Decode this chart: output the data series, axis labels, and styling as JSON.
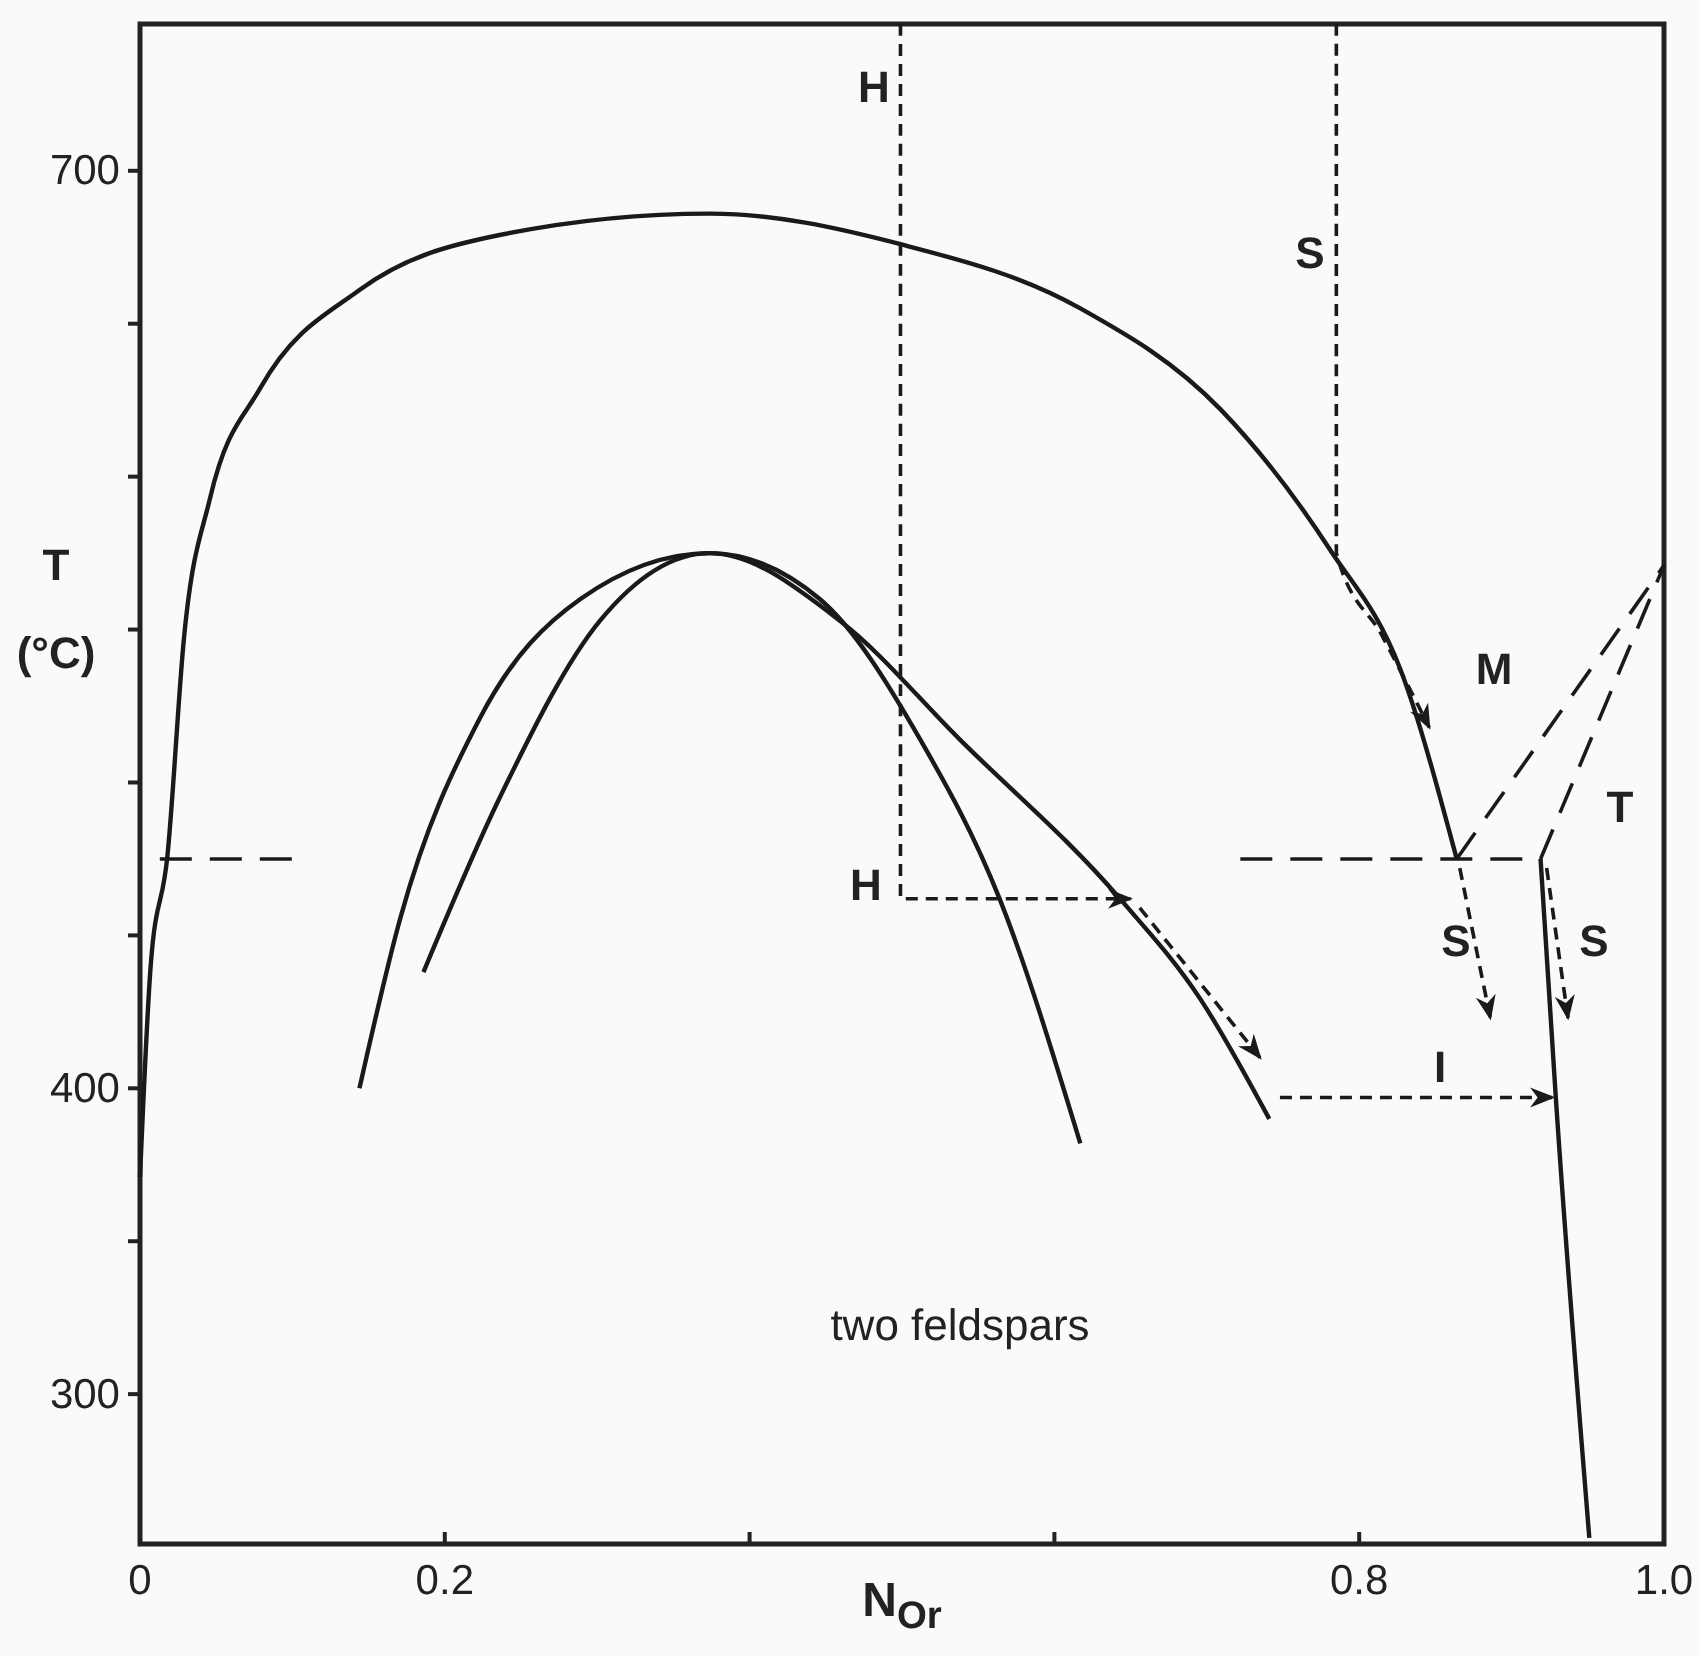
{
  "chart_data": {
    "type": "line",
    "xlabel": "N$_{Or}$",
    "ylabel": "T (°C)",
    "xlim": [
      0,
      1
    ],
    "ylim": [
      251,
      748
    ],
    "xticks": [
      0,
      0.2,
      {
        "value": 0.4,
        "label": null
      },
      {
        "value": 0.6,
        "label": null
      },
      0.8,
      {
        "value": 1,
        "label": "1.0"
      }
    ],
    "yticks": [
      300,
      {
        "value": 350,
        "label": null
      },
      400,
      {
        "value": 450,
        "label": null
      },
      {
        "value": 500,
        "label": null
      },
      {
        "value": 550,
        "label": null
      },
      {
        "value": 600,
        "label": null
      },
      {
        "value": 650,
        "label": null
      },
      700
    ],
    "grid": false,
    "series": [
      {
        "color": "#1a1a1a",
        "line_style": "solid",
        "x": [
          0,
          0.007,
          0.018,
          0.029,
          0.046,
          0.079,
          0.144,
          0.236,
          0.374,
          0.499,
          0.617,
          0.709,
          0.781,
          0.827,
          0.864
        ],
        "values": [
          371,
          440,
          476,
          548,
          593,
          629,
          661,
          679,
          686,
          676,
          655,
          622,
          576,
          537,
          475
        ]
      },
      {
        "color": "#1a1a1a",
        "line_style": "solid",
        "x": [
          0.144,
          0.171,
          0.223,
          0.289,
          0.374,
          0.446,
          0.512,
          0.564,
          0.617
        ],
        "values": [
          400,
          456,
          521,
          560,
          575,
          560,
          514,
          462,
          382
        ]
      },
      {
        "color": "#1a1a1a",
        "line_style": "solid",
        "x": [
          0.186,
          0.236,
          0.302,
          0.374,
          0.459,
          0.538,
          0.643,
          0.696,
          0.741
        ],
        "values": [
          438,
          495,
          553,
          575,
          553,
          514,
          462,
          429,
          390
        ]
      },
      {
        "color": "#1a1a1a",
        "line_style": "solid",
        "x": [
          0.919,
          0.929,
          0.951
        ],
        "values": [
          475,
          397,
          253
        ]
      },
      {
        "color": "#1a1a1a",
        "line_style": "dashed",
        "x": [
          0.013,
          0.102
        ],
        "values": [
          475,
          475
        ]
      },
      {
        "color": "#1a1a1a",
        "line_style": "dashed",
        "x": [
          0.722,
          0.919
        ],
        "values": [
          475,
          475
        ]
      },
      {
        "color": "#1a1a1a",
        "line_style": "dashed",
        "x": [
          0.864,
          1
        ],
        "values": [
          475,
          571
        ]
      },
      {
        "color": "#1a1a1a",
        "line_style": "dashed",
        "x": [
          0.919,
          1
        ],
        "values": [
          475,
          571
        ]
      },
      {
        "color": "#1a1a1a",
        "line_style": "dotted",
        "x": [
          0.499,
          0.499,
          0.65
        ],
        "values": [
          748,
          462,
          462
        ]
      },
      {
        "color": "#1a1a1a",
        "line_style": "dotted",
        "x": [
          0.785,
          0.785,
          0.815,
          0.846
        ],
        "values": [
          748,
          575,
          548,
          518
        ]
      },
      {
        "color": "#1a1a1a",
        "line_style": "dotted",
        "x": [
          0.656,
          0.735
        ],
        "values": [
          459,
          410
        ]
      },
      {
        "color": "#1a1a1a",
        "line_style": "dotted",
        "x": [
          0.748,
          0.927
        ],
        "values": [
          397,
          397
        ]
      },
      {
        "color": "#1a1a1a",
        "line_style": "dotted",
        "x": [
          0.866,
          0.886
        ],
        "values": [
          472,
          423
        ]
      },
      {
        "color": "#1a1a1a",
        "line_style": "dotted",
        "x": [
          0.923,
          0.937
        ],
        "values": [
          472,
          423
        ]
      }
    ],
    "annotations": [
      "H",
      "S",
      "M",
      "T",
      "H",
      "S",
      "S",
      "I",
      "two feldspars"
    ]
  }
}
